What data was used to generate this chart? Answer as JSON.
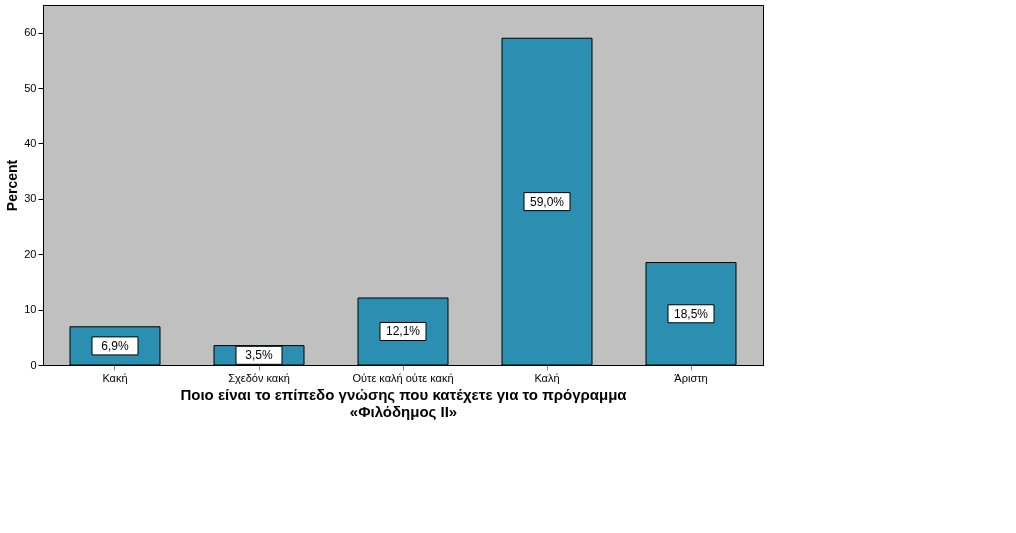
{
  "chart_data": {
    "type": "bar",
    "xlabel": "Ποιο είναι το επίπεδο γνώσης που κατέχετε για το πρόγραμμα «Φιλόδημος ΙΙ»",
    "ylabel": "Percent",
    "categories": [
      "Κακή",
      "Σχεδόν κακή",
      "Ούτε καλή ούτε κακή",
      "Καλή",
      "Άριστη"
    ],
    "values": [
      6.9,
      3.5,
      12.1,
      59.0,
      18.5
    ],
    "value_labels": [
      "6,9%",
      "3,5%",
      "12,1%",
      "59,0%",
      "18,5%"
    ],
    "color": "#2a8fb0",
    "ylim": [
      0,
      65
    ],
    "yticks": [
      0,
      10,
      20,
      30,
      40,
      50,
      60
    ],
    "grid": false
  }
}
